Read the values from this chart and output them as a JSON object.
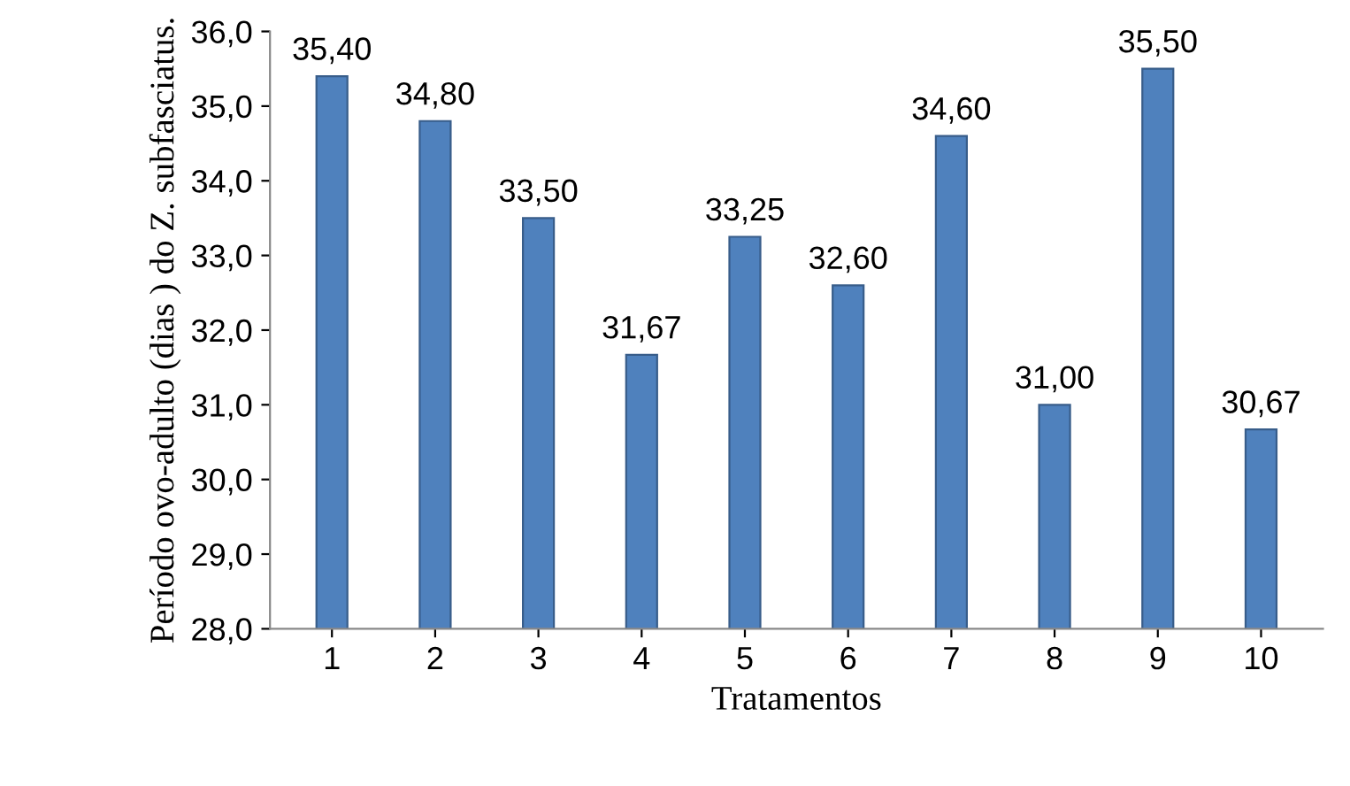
{
  "chart_data": {
    "type": "bar",
    "xlabel": "Tratamentos",
    "ylabel": "Período ovo-adulto (dias ) do Z. subfasciatus.",
    "categories": [
      "1",
      "2",
      "3",
      "4",
      "5",
      "6",
      "7",
      "8",
      "9",
      "10"
    ],
    "values": [
      35.4,
      34.8,
      33.5,
      31.67,
      33.25,
      32.6,
      34.6,
      31.0,
      35.5,
      30.67
    ],
    "value_labels": [
      "35,40",
      "34,80",
      "33,50",
      "31,67",
      "33,25",
      "32,60",
      "34,60",
      "31,00",
      "35,50",
      "30,67"
    ],
    "color": "#4f81bd",
    "ylim": [
      28,
      36
    ],
    "yticks": [
      {
        "value": 28,
        "label": "28,0"
      },
      {
        "value": 29,
        "label": "29,0"
      },
      {
        "value": 30,
        "label": "30,0"
      },
      {
        "value": 31,
        "label": "31,0"
      },
      {
        "value": 32,
        "label": "32,0"
      },
      {
        "value": 33,
        "label": "33,0"
      },
      {
        "value": 34,
        "label": "34,0"
      },
      {
        "value": 35,
        "label": "35,0"
      },
      {
        "value": 36,
        "label": "36,0"
      }
    ],
    "grid": false
  }
}
